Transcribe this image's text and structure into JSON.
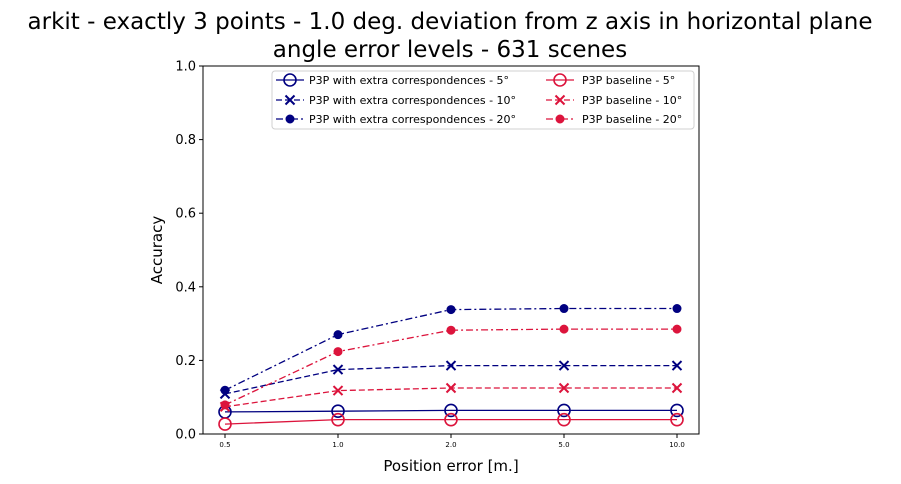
{
  "chart_data": {
    "type": "line",
    "title_line1": "arkit - exactly 3 points - 1.0 deg. deviation from z axis in horizontal plane",
    "title_line2": "angle error levels - 631 scenes",
    "xlabel": "Position error [m.]",
    "ylabel": "Accuracy",
    "categories": [
      "0.5",
      "1.0",
      "2.0",
      "5.0",
      "10.0"
    ],
    "ylim": [
      0,
      1
    ],
    "yticks": [
      "0.0",
      "0.2",
      "0.4",
      "0.6",
      "0.8",
      "1.0"
    ],
    "grid": false,
    "legend_position": "top-right",
    "legend_columns": 2,
    "series": [
      {
        "name": "P3P with extra correspondences - 5°",
        "color": "#000080",
        "linestyle": "solid",
        "marker": "circle-open",
        "values": [
          0.06,
          0.062,
          0.064,
          0.064,
          0.064
        ]
      },
      {
        "name": "P3P with extra correspondences - 10°",
        "color": "#000080",
        "linestyle": "dashed",
        "marker": "x",
        "values": [
          0.109,
          0.175,
          0.186,
          0.186,
          0.186
        ]
      },
      {
        "name": "P3P with extra correspondences - 20°",
        "color": "#000080",
        "linestyle": "dashdot",
        "marker": "dot",
        "values": [
          0.119,
          0.27,
          0.338,
          0.341,
          0.341
        ]
      },
      {
        "name": "P3P baseline - 5°",
        "color": "#dc143c",
        "linestyle": "solid",
        "marker": "circle-open",
        "values": [
          0.027,
          0.039,
          0.039,
          0.039,
          0.039
        ]
      },
      {
        "name": "P3P baseline - 10°",
        "color": "#dc143c",
        "linestyle": "dashed",
        "marker": "x",
        "values": [
          0.074,
          0.118,
          0.125,
          0.125,
          0.125
        ]
      },
      {
        "name": "P3P baseline - 20°",
        "color": "#dc143c",
        "linestyle": "dashdot",
        "marker": "dot",
        "values": [
          0.079,
          0.224,
          0.282,
          0.285,
          0.285
        ]
      }
    ]
  }
}
